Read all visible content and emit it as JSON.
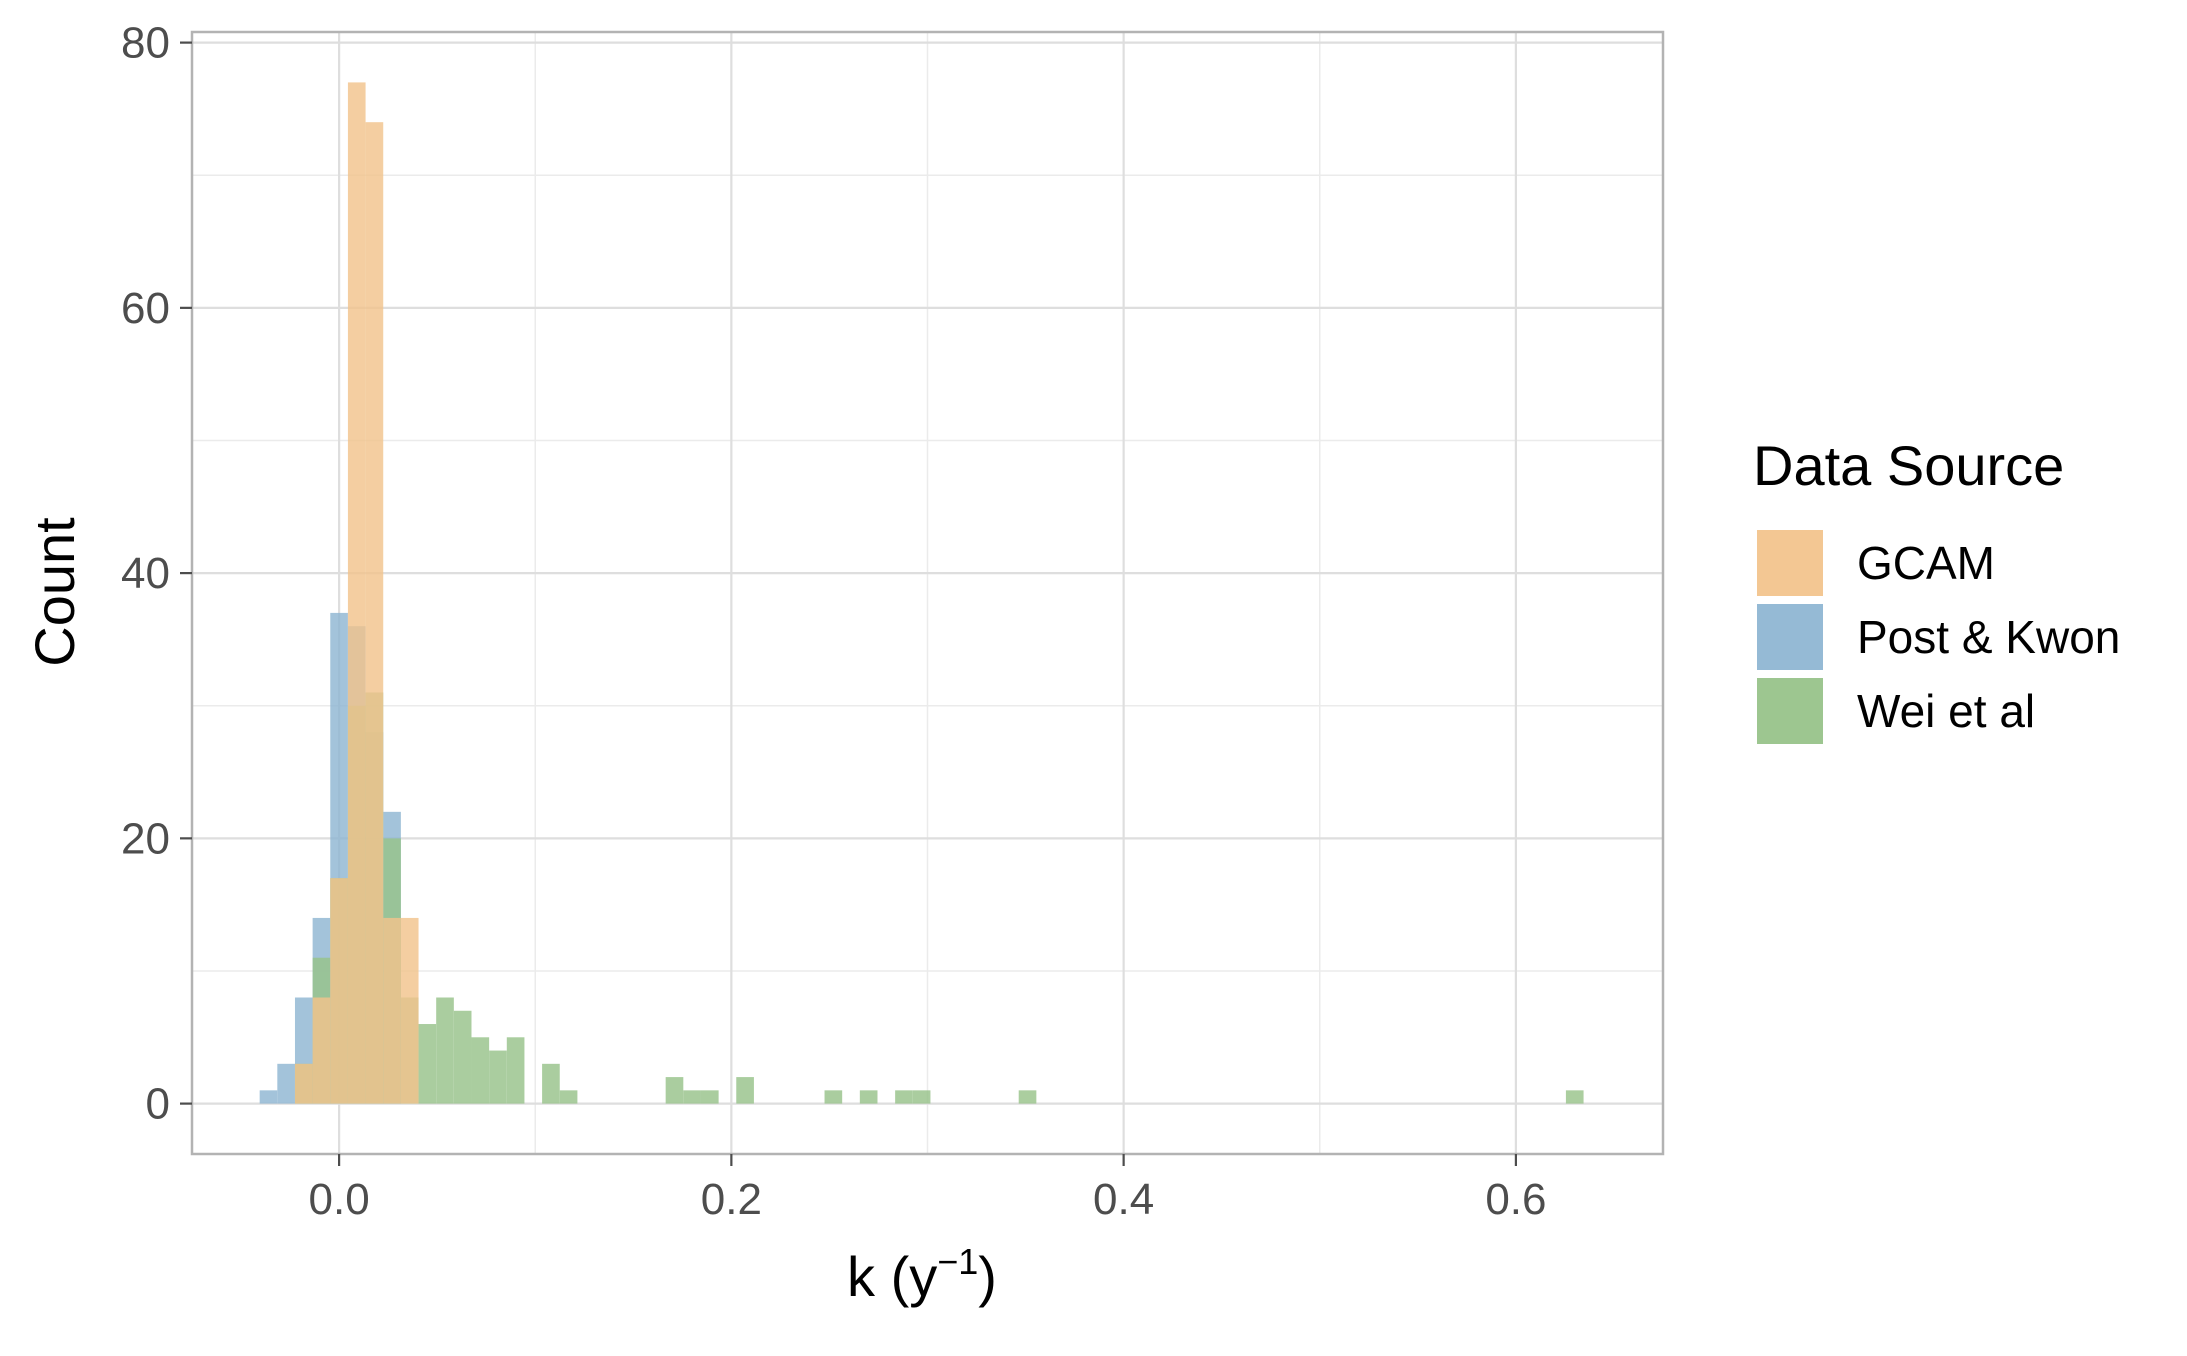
{
  "chart_data": {
    "type": "bar",
    "subtype": "histogram",
    "bin_width": 0.009,
    "xlim": [
      -0.075,
      0.675
    ],
    "ylim": [
      -3.8,
      80.8
    ],
    "x_ticks": [
      0.0,
      0.2,
      0.4,
      0.6
    ],
    "x_tick_labels": [
      "0.0",
      "0.2",
      "0.4",
      "0.6"
    ],
    "y_ticks": [
      0,
      20,
      40,
      60,
      80
    ],
    "y_tick_labels": [
      "0",
      "20",
      "40",
      "60",
      "80"
    ],
    "xlabel": {
      "base": "k (y",
      "superscript": "−1",
      "close": ")"
    },
    "ylabel": "Count",
    "grid": true,
    "legend": {
      "title": "Data Source",
      "position": "right"
    },
    "series": [
      {
        "name": "Post & Kwon",
        "color": "#8fb6d3",
        "bins": [
          {
            "x": -0.036,
            "count": 1
          },
          {
            "x": -0.027,
            "count": 3
          },
          {
            "x": -0.018,
            "count": 8
          },
          {
            "x": -0.009,
            "count": 14
          },
          {
            "x": 0.0,
            "count": 37
          },
          {
            "x": 0.009,
            "count": 36
          },
          {
            "x": 0.018,
            "count": 28
          },
          {
            "x": 0.027,
            "count": 22
          }
        ]
      },
      {
        "name": "Wei et al",
        "color": "#98c38a",
        "bins": [
          {
            "x": -0.018,
            "count": 3
          },
          {
            "x": -0.009,
            "count": 11
          },
          {
            "x": 0.0,
            "count": 17
          },
          {
            "x": 0.009,
            "count": 30
          },
          {
            "x": 0.018,
            "count": 31
          },
          {
            "x": 0.027,
            "count": 20
          },
          {
            "x": 0.036,
            "count": 8
          },
          {
            "x": 0.045,
            "count": 6
          },
          {
            "x": 0.054,
            "count": 8
          },
          {
            "x": 0.063,
            "count": 7
          },
          {
            "x": 0.072,
            "count": 5
          },
          {
            "x": 0.081,
            "count": 4
          },
          {
            "x": 0.09,
            "count": 5
          },
          {
            "x": 0.108,
            "count": 3
          },
          {
            "x": 0.117,
            "count": 1
          },
          {
            "x": 0.171,
            "count": 2
          },
          {
            "x": 0.18,
            "count": 1
          },
          {
            "x": 0.189,
            "count": 1
          },
          {
            "x": 0.207,
            "count": 2
          },
          {
            "x": 0.252,
            "count": 1
          },
          {
            "x": 0.27,
            "count": 1
          },
          {
            "x": 0.288,
            "count": 1
          },
          {
            "x": 0.297,
            "count": 1
          },
          {
            "x": 0.351,
            "count": 1
          },
          {
            "x": 0.63,
            "count": 1
          }
        ]
      },
      {
        "name": "GCAM",
        "color": "#f2c48d",
        "bins": [
          {
            "x": -0.018,
            "count": 3
          },
          {
            "x": -0.009,
            "count": 8
          },
          {
            "x": 0.0,
            "count": 17
          },
          {
            "x": 0.009,
            "count": 77
          },
          {
            "x": 0.018,
            "count": 74
          },
          {
            "x": 0.027,
            "count": 14
          },
          {
            "x": 0.036,
            "count": 14
          }
        ]
      }
    ],
    "legend_entries": [
      {
        "name": "GCAM",
        "color": "#f2c48d"
      },
      {
        "name": "Post & Kwon",
        "color": "#8fb6d3"
      },
      {
        "name": "Wei et al",
        "color": "#98c38a"
      }
    ]
  }
}
